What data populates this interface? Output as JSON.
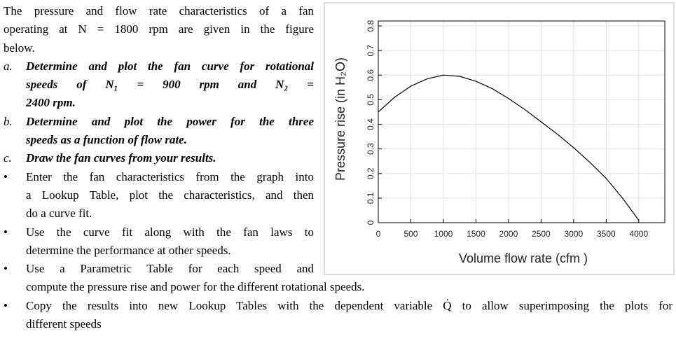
{
  "intro": [
    "The pressure and flow rate characteristics of a fan",
    "operating at N = 1800 rpm are given in the figure",
    "below."
  ],
  "items": [
    {
      "marker": "a.",
      "style": "em",
      "lines": [
        "Determine and plot the fan curve for rotational",
        "speeds of N₁ = 900 rpm and N₂ =",
        "2400 rpm."
      ]
    },
    {
      "marker": "b.",
      "style": "em",
      "lines": [
        "Determine and plot the power for the three",
        "speeds as a function of flow rate."
      ]
    },
    {
      "marker": "c.",
      "style": "em",
      "lines": [
        "Draw the fan curves from your results."
      ]
    },
    {
      "marker": "•",
      "style": "plain",
      "lines": [
        "Enter the fan characteristics from the graph into",
        "a Lookup Table, plot the characteristics, and then",
        "do a curve fit."
      ]
    },
    {
      "marker": "•",
      "style": "plain",
      "lines": [
        "Use the curve fit along with the fan laws to",
        "determine the performance at other speeds."
      ]
    },
    {
      "marker": "•",
      "style": "plain",
      "lines": [
        "Use a Parametric Table for each speed and",
        "compute the pressure rise and power for the different rotational speeds."
      ]
    },
    {
      "marker": "•",
      "style": "plain",
      "lines": [
        "Copy the results into new Lookup Tables with the dependent variable Q̇ to allow superimposing the plots for",
        "different speeds"
      ]
    }
  ],
  "chart_data": {
    "type": "line",
    "x_label": "Volume flow rate (cfm )",
    "y_label": "Pressure rise (in H₂O)",
    "x": [
      0,
      250,
      500,
      750,
      1000,
      1250,
      1500,
      1750,
      2000,
      2250,
      2500,
      2750,
      3000,
      3250,
      3500,
      3750,
      4000
    ],
    "series": [
      {
        "color": "#000000",
        "values": [
          0.45,
          0.51,
          0.555,
          0.585,
          0.6,
          0.595,
          0.575,
          0.545,
          0.505,
          0.46,
          0.41,
          0.36,
          0.305,
          0.245,
          0.18,
          0.1,
          0.01
        ]
      }
    ],
    "xlim": [
      0,
      4400
    ],
    "ylim": [
      0,
      0.82
    ],
    "xticks": [
      0,
      500,
      1000,
      1500,
      2000,
      2500,
      3000,
      3500,
      4000
    ],
    "yticks": [
      0,
      0.1,
      0.2,
      0.3,
      0.4,
      0.5,
      0.6,
      0.7,
      0.8
    ],
    "grid": true
  }
}
